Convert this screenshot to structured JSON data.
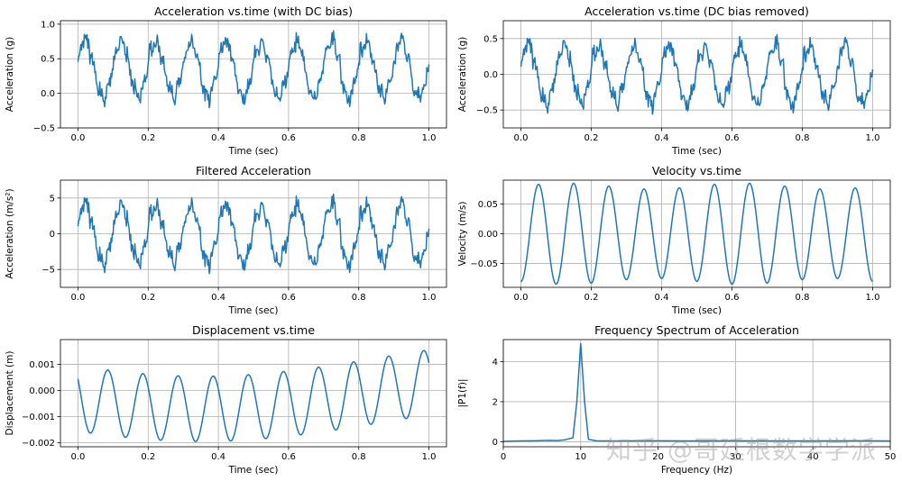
{
  "colors": {
    "line": "#1f77b4",
    "grid": "#b0b0b0"
  },
  "watermark": "知乎 @哥廷根数学学派",
  "chart_data": [
    {
      "type": "line",
      "title": "Acceleration vs.time (with DC bias)",
      "xlabel": "Time (sec)",
      "ylabel": "Acceleration (g)",
      "xlim": [
        -0.05,
        1.05
      ],
      "ylim": [
        -0.5,
        1.05
      ],
      "xticks": [
        0.0,
        0.2,
        0.4,
        0.6,
        0.8,
        1.0
      ],
      "xticklabels": [
        "0.0",
        "0.2",
        "0.4",
        "0.6",
        "0.8",
        "1.0"
      ],
      "yticks": [
        -0.5,
        0.0,
        0.5,
        1.0
      ],
      "yticklabels": [
        "−0.5",
        "0.0",
        "0.5",
        "1.0"
      ],
      "grid": true,
      "signal": {
        "kind": "noisy_sine",
        "offset": 0.35,
        "amplitude": 0.4,
        "frequency_hz": 10,
        "phase": 0.2,
        "noise": 0.12,
        "harmonic_hz": 50,
        "harmonic_amplitude": 0.06,
        "t_start": 0,
        "t_end": 1,
        "samples": 500
      }
    },
    {
      "type": "line",
      "title": "Acceleration vs.time (DC bias removed)",
      "xlabel": "Time (sec)",
      "ylabel": "Acceleration (g)",
      "xlim": [
        -0.05,
        1.05
      ],
      "ylim": [
        -0.75,
        0.75
      ],
      "xticks": [
        0.0,
        0.2,
        0.4,
        0.6,
        0.8,
        1.0
      ],
      "xticklabels": [
        "0.0",
        "0.2",
        "0.4",
        "0.6",
        "0.8",
        "1.0"
      ],
      "yticks": [
        -0.5,
        0.0,
        0.5
      ],
      "yticklabels": [
        "−0.5",
        "0.0",
        "0.5"
      ],
      "grid": true,
      "signal": {
        "kind": "noisy_sine",
        "offset": 0.0,
        "amplitude": 0.4,
        "frequency_hz": 10,
        "phase": 0.2,
        "noise": 0.12,
        "harmonic_hz": 50,
        "harmonic_amplitude": 0.06,
        "t_start": 0,
        "t_end": 1,
        "samples": 500
      }
    },
    {
      "type": "line",
      "title": "Filtered Acceleration",
      "xlabel": "Time (sec)",
      "ylabel": "Acceleration (m/s²)",
      "xlim": [
        -0.05,
        1.05
      ],
      "ylim": [
        -7.5,
        7.5
      ],
      "xticks": [
        0.0,
        0.2,
        0.4,
        0.6,
        0.8,
        1.0
      ],
      "xticklabels": [
        "0.0",
        "0.2",
        "0.4",
        "0.6",
        "0.8",
        "1.0"
      ],
      "yticks": [
        -5,
        0,
        5
      ],
      "yticklabels": [
        "−5",
        "0",
        "5"
      ],
      "grid": true,
      "signal": {
        "kind": "noisy_sine",
        "offset": 0.0,
        "amplitude": 4.0,
        "frequency_hz": 10,
        "phase": 0.2,
        "noise": 1.2,
        "harmonic_hz": 50,
        "harmonic_amplitude": 0.6,
        "t_start": 0,
        "t_end": 1,
        "samples": 500
      }
    },
    {
      "type": "line",
      "title": "Velocity vs.time",
      "xlabel": "Time (sec)",
      "ylabel": "Velocity (m/s)",
      "xlim": [
        -0.05,
        1.05
      ],
      "ylim": [
        -0.09,
        0.09
      ],
      "xticks": [
        0.0,
        0.2,
        0.4,
        0.6,
        0.8,
        1.0
      ],
      "xticklabels": [
        "0.0",
        "0.2",
        "0.4",
        "0.6",
        "0.8",
        "1.0"
      ],
      "yticks": [
        -0.05,
        0.0,
        0.05
      ],
      "yticklabels": [
        "−0.05",
        "0.00",
        "0.05"
      ],
      "grid": true,
      "signal": {
        "kind": "sine",
        "offset": 0.0,
        "amplitude": 0.08,
        "frequency_hz": 10,
        "phase": -1.5708,
        "amplitude_mod": 0.005,
        "t_start": 0,
        "t_end": 1,
        "samples": 500
      }
    },
    {
      "type": "line",
      "title": "Displacement vs.time",
      "xlabel": "Time (sec)",
      "ylabel": "Displacement (m)",
      "xlim": [
        -0.05,
        1.05
      ],
      "ylim": [
        -0.00215,
        0.00195
      ],
      "xticks": [
        0.0,
        0.2,
        0.4,
        0.6,
        0.8,
        1.0
      ],
      "xticklabels": [
        "0.0",
        "0.2",
        "0.4",
        "0.6",
        "0.8",
        "1.0"
      ],
      "yticks": [
        -0.002,
        -0.001,
        0.0,
        0.001
      ],
      "yticklabels": [
        "−0.002",
        "−0.001",
        "0.000",
        "0.001"
      ],
      "grid": true,
      "signal": {
        "kind": "drift_sine",
        "amplitude": 0.00125,
        "frequency_hz": 10,
        "phase": 2.5,
        "drift_amplitude": 0.0007,
        "drift_frequency_hz": 0.5,
        "drift_phase": 3.6,
        "t_start": 0,
        "t_end": 1,
        "samples": 500
      }
    },
    {
      "type": "line",
      "title": "Frequency Spectrum of Acceleration",
      "xlabel": "Frequency (Hz)",
      "ylabel": "|P1(f)|",
      "xlim": [
        0,
        50
      ],
      "ylim": [
        -0.25,
        5.1
      ],
      "xticks": [
        0,
        10,
        20,
        30,
        40,
        50
      ],
      "xticklabels": [
        "0",
        "10",
        "20",
        "30",
        "40",
        "50"
      ],
      "yticks": [
        0,
        2,
        4
      ],
      "yticklabels": [
        "0",
        "2",
        "4"
      ],
      "grid": true,
      "x": [
        0,
        2,
        4,
        6,
        7,
        8,
        9,
        9.5,
        10,
        10.5,
        11,
        12,
        14,
        16,
        20,
        25,
        30,
        35,
        40,
        45,
        50
      ],
      "values": [
        0.02,
        0.04,
        0.05,
        0.07,
        0.06,
        0.1,
        0.2,
        2.0,
        4.9,
        2.0,
        0.12,
        0.05,
        0.04,
        0.04,
        0.05,
        0.04,
        0.05,
        0.04,
        0.04,
        0.05,
        0.04
      ]
    }
  ]
}
